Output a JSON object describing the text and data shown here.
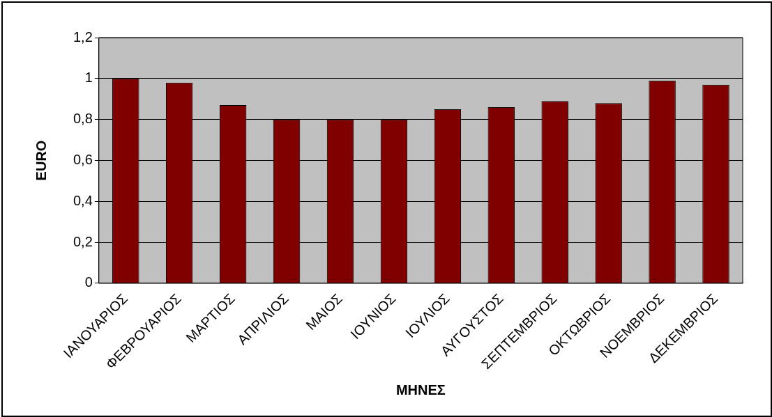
{
  "chart_data": {
    "type": "bar",
    "xlabel": "ΜΗΝΕΣ",
    "ylabel": "EURO",
    "categories": [
      "ΙΑΝΟΥΑΡΙΟΣ",
      "ΦΕΒΡΟΥΑΡΙΟΣ",
      "ΜΑΡΤΙΟΣ",
      "ΑΠΡΙΛΙΟΣ",
      "ΜΑΙΟΣ",
      "ΙΟΥΝΙΟΣ",
      "ΙΟΥΛΙΟΣ",
      "ΑΥΓΟΥΣΤΟΣ",
      "ΣΕΠΤΕΜΒΡΙΟΣ",
      "ΟΚΤΩΒΡΙΟΣ",
      "ΝΟΕΜΒΡΙΟΣ",
      "ΔΕΚΕΜΒΡΙΟΣ"
    ],
    "values": [
      1.0,
      0.98,
      0.87,
      0.8,
      0.8,
      0.8,
      0.85,
      0.86,
      0.89,
      0.88,
      0.99,
      0.97
    ],
    "color": "#800000",
    "ylim": [
      0,
      1.2
    ],
    "yticks": [
      {
        "value": 0,
        "label": "0"
      },
      {
        "value": 0.2,
        "label": "0,2"
      },
      {
        "value": 0.4,
        "label": "0,4"
      },
      {
        "value": 0.6,
        "label": "0,6"
      },
      {
        "value": 0.8,
        "label": "0,8"
      },
      {
        "value": 1,
        "label": "1"
      },
      {
        "value": 1.2,
        "label": "1,2"
      }
    ],
    "grid": "y",
    "legend": false
  }
}
